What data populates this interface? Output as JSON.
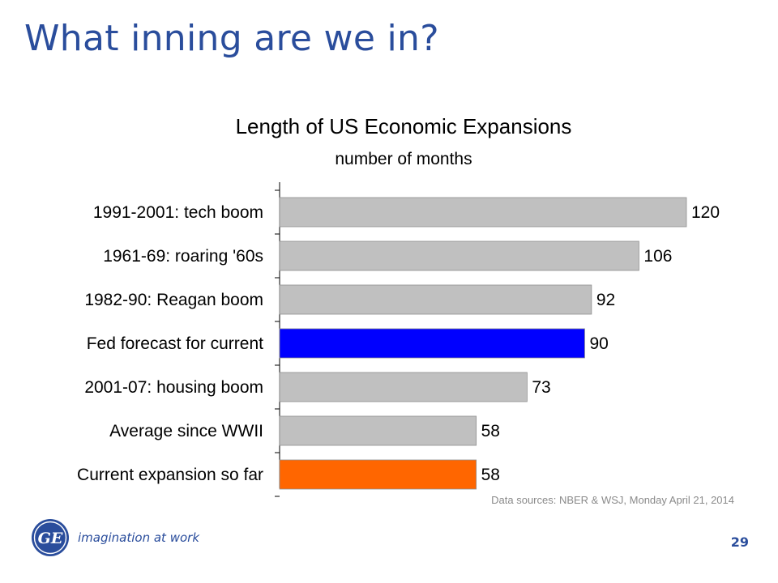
{
  "slide": {
    "title": "What inning are we in?",
    "page_number": "29",
    "logo_text": "GE",
    "tagline": "imagination at work"
  },
  "colors": {
    "title": "#2a4d9c",
    "default_bar": "#c0c0c0",
    "highlight_blue": "#0000ff",
    "highlight_orange": "#ff6600"
  },
  "chart_data": {
    "type": "bar",
    "orientation": "horizontal",
    "title": "Length of US Economic Expansions",
    "subtitle": "number of months",
    "xlabel": "",
    "ylabel": "",
    "categories": [
      "1991-2001: tech boom",
      "1961-69: roaring '60s",
      "1982-90: Reagan boom",
      "Fed forecast for current",
      "2001-07: housing boom",
      "Average since WWII",
      "Current expansion so far"
    ],
    "values": [
      120,
      106,
      92,
      90,
      73,
      58,
      58
    ],
    "bar_colors": [
      "#c0c0c0",
      "#c0c0c0",
      "#c0c0c0",
      "#0000ff",
      "#c0c0c0",
      "#c0c0c0",
      "#ff6600"
    ],
    "data_labels": [
      "120",
      "106",
      "92",
      "90",
      "73",
      "58",
      "58"
    ],
    "xlim": [
      0,
      120
    ],
    "grid": false,
    "legend": "none",
    "note": "Data sources: NBER & WSJ, Monday April 21, 2014"
  }
}
